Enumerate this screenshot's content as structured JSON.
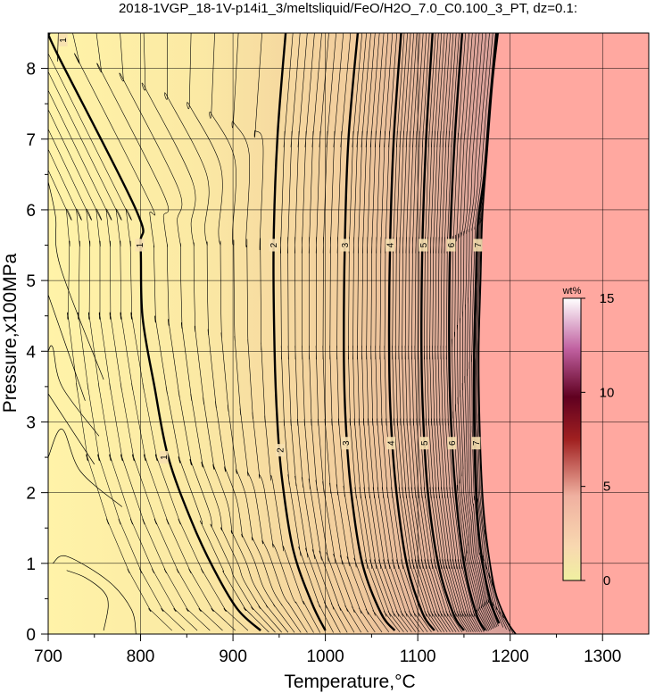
{
  "chart_data": {
    "type": "heatmap",
    "title": "2018-1VGP_18-1V-p14i1_3/meltsliquid/FeO/H2O_7.0_C0.100_3_PT, dz=0.1:",
    "xlabel": "Temperature,°C",
    "ylabel": "Pressure,x100MPa",
    "xlim": [
      700,
      1350
    ],
    "ylim": [
      0,
      8.5
    ],
    "x_ticks": [
      "700",
      "800",
      "900",
      "1000",
      "1100",
      "1200",
      "1300"
    ],
    "y_ticks": [
      "0",
      "1",
      "2",
      "3",
      "4",
      "5",
      "6",
      "7",
      "8"
    ],
    "grid": true,
    "colorbar": {
      "unit": "wt%",
      "range": [
        0,
        15
      ],
      "ticks": [
        "0",
        "5",
        "10",
        "15"
      ],
      "colors": [
        "#f0f0a0",
        "#f8d0a8",
        "#f0b0a0",
        "#a02020",
        "#600020",
        "#c060a0",
        "#ffffff"
      ]
    },
    "liquidus_region_color": "#ffa8a0",
    "contour_interval": 0.1,
    "major_contours": [
      {
        "level": 1,
        "label": "1",
        "points": [
          [
            701,
            8.5
          ],
          [
            710,
            8.2
          ],
          [
            795,
            6.0
          ],
          [
            800,
            5.5
          ],
          [
            802,
            4.5
          ],
          [
            815,
            3.5
          ],
          [
            830,
            2.5
          ],
          [
            855,
            1.6
          ],
          [
            880,
            0.9
          ],
          [
            905,
            0.35
          ],
          [
            930,
            0.05
          ]
        ],
        "label_positions": [
          [
            716,
            8.4
          ],
          [
            799,
            5.5
          ],
          [
            825,
            2.5
          ]
        ]
      },
      {
        "level": 2,
        "label": "2",
        "points": [
          [
            957,
            8.5
          ],
          [
            948,
            7.0
          ],
          [
            944,
            5.5
          ],
          [
            945,
            4.0
          ],
          [
            948,
            3.0
          ],
          [
            953,
            2.2
          ],
          [
            965,
            1.2
          ],
          [
            985,
            0.45
          ],
          [
            1000,
            0.05
          ]
        ],
        "label_positions": [
          [
            944,
            5.5
          ],
          [
            951,
            2.6
          ]
        ]
      },
      {
        "level": 3,
        "label": "3",
        "points": [
          [
            1035,
            8.5
          ],
          [
            1025,
            7.0
          ],
          [
            1021,
            5.5
          ],
          [
            1020,
            4.0
          ],
          [
            1022,
            3.0
          ],
          [
            1028,
            2.0
          ],
          [
            1040,
            1.0
          ],
          [
            1060,
            0.3
          ],
          [
            1075,
            0.05
          ]
        ],
        "label_positions": [
          [
            1021,
            5.5
          ],
          [
            1022,
            2.7
          ]
        ]
      },
      {
        "level": 4,
        "label": "4",
        "points": [
          [
            1082,
            8.5
          ],
          [
            1074,
            7.0
          ],
          [
            1070,
            5.5
          ],
          [
            1069,
            4.0
          ],
          [
            1071,
            3.0
          ],
          [
            1077,
            2.0
          ],
          [
            1088,
            1.0
          ],
          [
            1105,
            0.3
          ],
          [
            1118,
            0.05
          ]
        ],
        "label_positions": [
          [
            1070,
            5.5
          ],
          [
            1071,
            2.7
          ]
        ]
      },
      {
        "level": 5,
        "label": "5",
        "points": [
          [
            1116,
            8.5
          ],
          [
            1109,
            7.0
          ],
          [
            1105,
            5.5
          ],
          [
            1104,
            4.0
          ],
          [
            1106,
            3.0
          ],
          [
            1111,
            2.0
          ],
          [
            1122,
            1.0
          ],
          [
            1138,
            0.3
          ],
          [
            1150,
            0.05
          ]
        ],
        "label_positions": [
          [
            1106,
            5.5
          ],
          [
            1107,
            2.7
          ]
        ]
      },
      {
        "level": 6,
        "label": "6",
        "points": [
          [
            1148,
            8.5
          ],
          [
            1140,
            7.0
          ],
          [
            1135,
            5.5
          ],
          [
            1134,
            4.0
          ],
          [
            1136,
            3.0
          ],
          [
            1141,
            2.0
          ],
          [
            1150,
            1.0
          ],
          [
            1163,
            0.3
          ],
          [
            1173,
            0.05
          ]
        ],
        "label_positions": [
          [
            1136,
            5.5
          ],
          [
            1137,
            2.7
          ]
        ]
      },
      {
        "level": 7,
        "label": "7",
        "points": [
          [
            1185,
            8.5
          ],
          [
            1178,
            7.5
          ],
          [
            1172,
            6.5
          ],
          [
            1165,
            5.8
          ],
          [
            1163,
            5.0
          ],
          [
            1161,
            4.0
          ],
          [
            1161,
            3.0
          ],
          [
            1163,
            2.0
          ],
          [
            1168,
            1.2
          ],
          [
            1178,
            0.5
          ],
          [
            1188,
            0.15
          ]
        ],
        "label_positions": [
          [
            1165,
            5.5
          ],
          [
            1163,
            2.7
          ]
        ]
      }
    ],
    "liquidus_boundary": [
      [
        1187,
        8.5
      ],
      [
        1181,
        7.8
      ],
      [
        1175,
        6.8
      ],
      [
        1170,
        5.9
      ],
      [
        1168,
        5.0
      ],
      [
        1166,
        4.0
      ],
      [
        1167,
        3.0
      ],
      [
        1170,
        2.0
      ],
      [
        1175,
        1.3
      ],
      [
        1184,
        0.6
      ],
      [
        1196,
        0.2
      ],
      [
        1206,
        0.0
      ]
    ],
    "thin_curves": [
      [
        [
          711,
          8.5
        ],
        [
          710,
          8.1
        ]
      ],
      [
        [
          700,
          6.4
        ],
        [
          708,
          5.9
        ],
        [
          713,
          5.2
        ],
        [
          760,
          3.6
        ]
      ],
      [
        [
          700,
          4.8
        ],
        [
          740,
          3.3
        ]
      ],
      [
        [
          700,
          4.0
        ],
        [
          705,
          4.05
        ],
        [
          715,
          3.5
        ],
        [
          755,
          2.8
        ]
      ],
      [
        [
          700,
          3.4
        ],
        [
          750,
          2.4
        ]
      ],
      [
        [
          700,
          2.5
        ],
        [
          715,
          2.9
        ],
        [
          735,
          2.3
        ],
        [
          780,
          1.8
        ]
      ],
      [
        [
          705,
          1.0
        ],
        [
          720,
          1.1
        ],
        [
          765,
          0.75
        ],
        [
          790,
          0.35
        ],
        [
          795,
          0.0
        ]
      ],
      [
        [
          720,
          0.9
        ],
        [
          740,
          0.8
        ],
        [
          760,
          0.6
        ],
        [
          765,
          0.4
        ],
        [
          760,
          0.05
        ]
      ]
    ]
  }
}
